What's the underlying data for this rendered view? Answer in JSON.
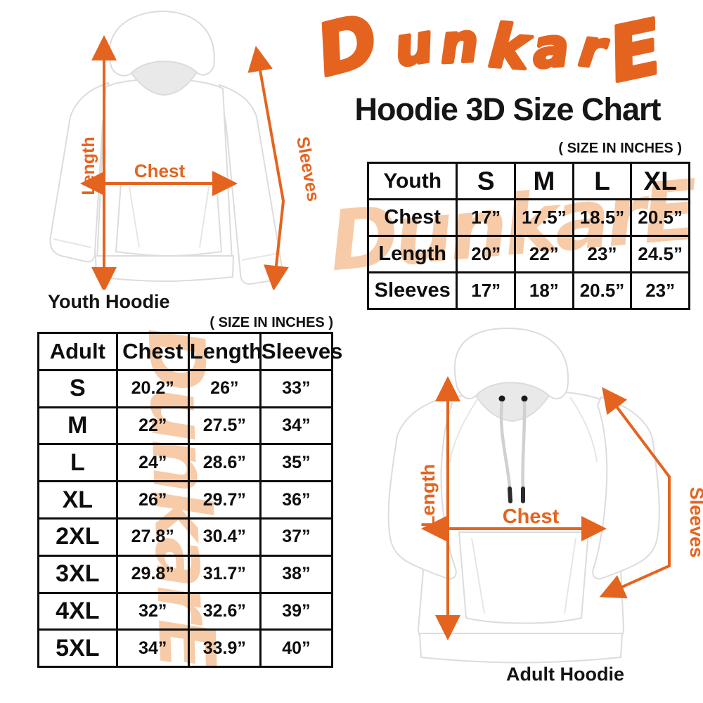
{
  "brand": {
    "name": "DunkarE",
    "letters": [
      "D",
      "u",
      "n",
      "k",
      "a",
      "r",
      "E"
    ],
    "accent_color": "#E4641F",
    "watermark_color": "#F7CBA8"
  },
  "title": "Hoodie 3D Size Chart",
  "youth_section": {
    "size_note": "( SIZE IN INCHES )",
    "caption": "Youth Hoodie",
    "measure_labels": {
      "length": "Length",
      "chest": "Chest",
      "sleeves": "Sleeves"
    },
    "table": {
      "header": [
        "Youth",
        "S",
        "M",
        "L",
        "XL"
      ],
      "rows": [
        {
          "label": "Chest",
          "values": [
            "17”",
            "17.5”",
            "18.5”",
            "20.5”"
          ]
        },
        {
          "label": "Length",
          "values": [
            "20”",
            "22”",
            "23”",
            "24.5”"
          ]
        },
        {
          "label": "Sleeves",
          "values": [
            "17”",
            "18”",
            "20.5”",
            "23”"
          ]
        }
      ]
    }
  },
  "adult_section": {
    "size_note": "( SIZE IN INCHES )",
    "caption": "Adult Hoodie",
    "measure_labels": {
      "length": "Length",
      "chest": "Chest",
      "sleeves": "Sleeves"
    },
    "table": {
      "header": [
        "Adult",
        "Chest",
        "Length",
        "Sleeves"
      ],
      "rows": [
        {
          "label": "S",
          "values": [
            "20.2”",
            "26”",
            "33”"
          ]
        },
        {
          "label": "M",
          "values": [
            "22”",
            "27.5”",
            "34”"
          ]
        },
        {
          "label": "L",
          "values": [
            "24”",
            "28.6”",
            "35”"
          ]
        },
        {
          "label": "XL",
          "values": [
            "26”",
            "29.7”",
            "36”"
          ]
        },
        {
          "label": "2XL",
          "values": [
            "27.8”",
            "30.4”",
            "37”"
          ]
        },
        {
          "label": "3XL",
          "values": [
            "29.8”",
            "31.7”",
            "38”"
          ]
        },
        {
          "label": "4XL",
          "values": [
            "32”",
            "32.6”",
            "39”"
          ]
        },
        {
          "label": "5XL",
          "values": [
            "34”",
            "33.9”",
            "40”"
          ]
        }
      ]
    }
  }
}
